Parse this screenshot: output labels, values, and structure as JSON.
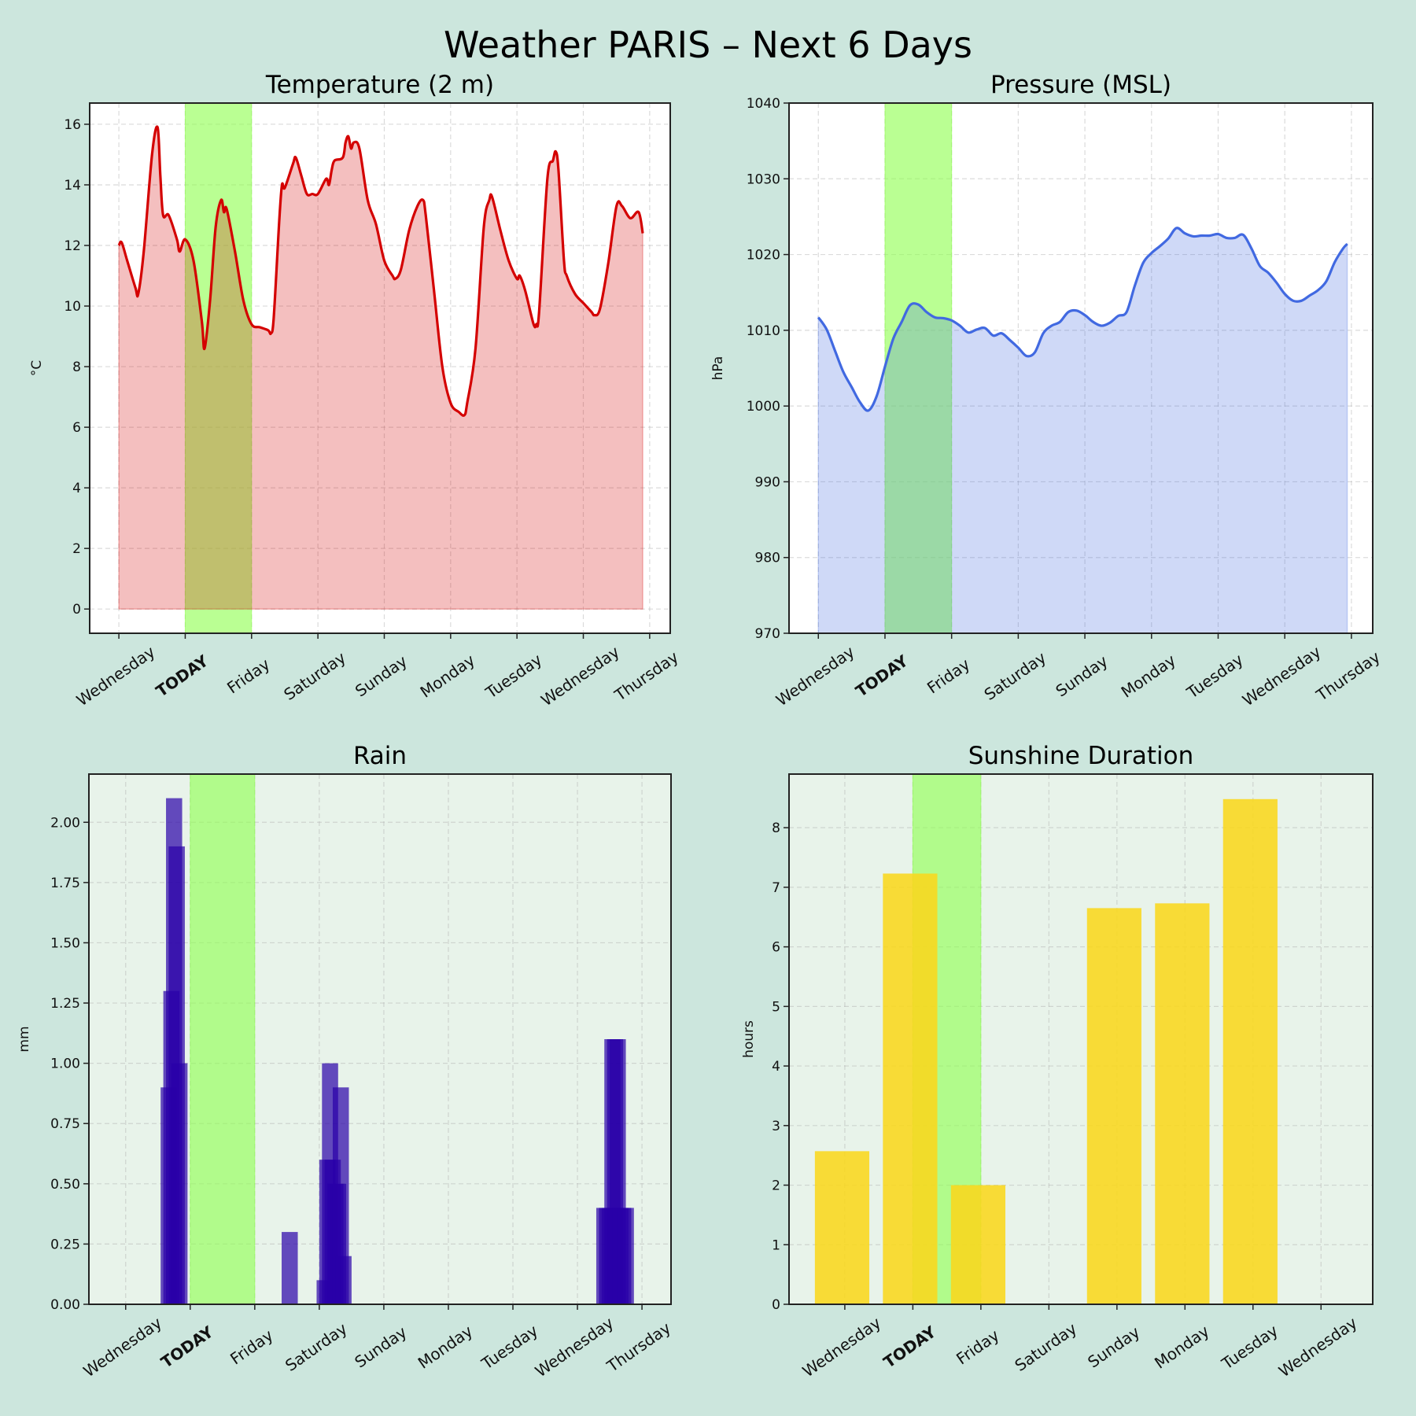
{
  "title": "Weather PARIS – Next 6 Days",
  "colors": {
    "background": "#cce6dd",
    "today_band": "#90ff50",
    "today_label": "#5cbf00",
    "temperature_line": "#d40000",
    "pressure_line": "#4169e1",
    "rain_bar": "#2a00a8",
    "sunshine_bar": "#f9d71c"
  },
  "chart_data": [
    {
      "id": "temperature",
      "type": "area",
      "title": "Temperature (2 m)",
      "xlabel": "",
      "ylabel": "°C",
      "grid": true,
      "panel_background": "#ffffff",
      "xtick_labels": [
        "Wednesday",
        "TODAY",
        "Friday",
        "Saturday",
        "Sunday",
        "Monday",
        "Tuesday",
        "Wednesday",
        "Thursday"
      ],
      "today_label": "TODAY",
      "ylim": [
        -0.8,
        16.7
      ],
      "yticks": [
        0,
        2,
        4,
        6,
        8,
        10,
        12,
        14,
        16
      ],
      "days": [
        {
          "day": "Wednesday",
          "points": [
            [
              "00:00",
              12.0
            ],
            [
              "01:00",
              12.1
            ],
            [
              "03:00",
              11.5
            ],
            [
              "06:00",
              10.6
            ],
            [
              "07:00",
              10.4
            ],
            [
              "09:00",
              11.8
            ],
            [
              "12:00",
              15.0
            ],
            [
              "14:00",
              15.9
            ],
            [
              "15:00",
              14.3
            ],
            [
              "16:00",
              13.0
            ],
            [
              "18:00",
              13.0
            ],
            [
              "21:00",
              12.2
            ],
            [
              "22:00",
              11.8
            ]
          ]
        },
        {
          "day": "TODAY",
          "points": [
            [
              "00:00",
              12.2
            ],
            [
              "03:00",
              11.5
            ],
            [
              "06:00",
              9.5
            ],
            [
              "07:00",
              8.6
            ],
            [
              "09:00",
              10.2
            ],
            [
              "11:00",
              12.6
            ],
            [
              "13:00",
              13.5
            ],
            [
              "14:00",
              13.1
            ],
            [
              "15:00",
              13.2
            ],
            [
              "18:00",
              11.8
            ],
            [
              "21:00",
              10.2
            ]
          ]
        },
        {
          "day": "Friday",
          "points": [
            [
              "00:00",
              9.4
            ],
            [
              "03:00",
              9.3
            ],
            [
              "06:00",
              9.2
            ],
            [
              "07:00",
              9.1
            ],
            [
              "08:00",
              9.6
            ],
            [
              "10:00",
              12.8
            ],
            [
              "11:00",
              14.0
            ],
            [
              "12:00",
              13.9
            ],
            [
              "15:00",
              14.7
            ],
            [
              "16:00",
              14.9
            ],
            [
              "18:00",
              14.3
            ],
            [
              "20:00",
              13.7
            ],
            [
              "22:00",
              13.7
            ]
          ]
        },
        {
          "day": "Saturday",
          "points": [
            [
              "00:00",
              13.7
            ],
            [
              "03:00",
              14.2
            ],
            [
              "04:00",
              14.0
            ],
            [
              "05:00",
              14.5
            ],
            [
              "06:00",
              14.8
            ],
            [
              "09:00",
              14.9
            ],
            [
              "10:00",
              15.4
            ],
            [
              "11:00",
              15.6
            ],
            [
              "12:00",
              15.2
            ],
            [
              "13:00",
              15.4
            ],
            [
              "15:00",
              15.2
            ],
            [
              "18:00",
              13.5
            ],
            [
              "21:00",
              12.7
            ]
          ]
        },
        {
          "day": "Sunday",
          "points": [
            [
              "00:00",
              11.5
            ],
            [
              "03:00",
              11.0
            ],
            [
              "04:00",
              10.9
            ],
            [
              "06:00",
              11.2
            ],
            [
              "09:00",
              12.5
            ],
            [
              "12:00",
              13.3
            ],
            [
              "14:00",
              13.5
            ],
            [
              "15:00",
              13.0
            ],
            [
              "18:00",
              10.5
            ],
            [
              "21:00",
              8.0
            ]
          ]
        },
        {
          "day": "Monday",
          "points": [
            [
              "00:00",
              6.8
            ],
            [
              "03:00",
              6.5
            ],
            [
              "05:00",
              6.4
            ],
            [
              "06:00",
              6.8
            ],
            [
              "09:00",
              8.6
            ],
            [
              "12:00",
              12.6
            ],
            [
              "14:00",
              13.5
            ],
            [
              "15:00",
              13.6
            ],
            [
              "18:00",
              12.5
            ],
            [
              "21:00",
              11.5
            ]
          ]
        },
        {
          "day": "Tuesday",
          "points": [
            [
              "00:00",
              10.9
            ],
            [
              "01:00",
              11.0
            ],
            [
              "03:00",
              10.5
            ],
            [
              "06:00",
              9.4
            ],
            [
              "07:00",
              9.4
            ],
            [
              "08:00",
              9.8
            ],
            [
              "11:00",
              14.2
            ],
            [
              "13:00",
              14.8
            ],
            [
              "14:00",
              15.1
            ],
            [
              "15:00",
              14.5
            ],
            [
              "17:00",
              11.5
            ],
            [
              "18:00",
              11.0
            ],
            [
              "21:00",
              10.4
            ]
          ]
        },
        {
          "day": "Wednesday",
          "points": [
            [
              "00:00",
              10.1
            ],
            [
              "03:00",
              9.8
            ],
            [
              "04:00",
              9.7
            ],
            [
              "06:00",
              9.9
            ],
            [
              "09:00",
              11.4
            ],
            [
              "12:00",
              13.3
            ],
            [
              "14:00",
              13.3
            ],
            [
              "17:00",
              12.9
            ],
            [
              "20:00",
              13.1
            ],
            [
              "21:30",
              12.4
            ]
          ]
        }
      ]
    },
    {
      "id": "pressure",
      "type": "area",
      "title": "Pressure (MSL)",
      "xlabel": "",
      "ylabel": "hPa",
      "grid": true,
      "panel_background": "#ffffff",
      "xtick_labels": [
        "Wednesday",
        "TODAY",
        "Friday",
        "Saturday",
        "Sunday",
        "Monday",
        "Tuesday",
        "Wednesday",
        "Thursday"
      ],
      "today_label": "TODAY",
      "ylim": [
        970,
        1040
      ],
      "yticks": [
        970,
        980,
        990,
        1000,
        1010,
        1020,
        1030,
        1040
      ],
      "days": [
        {
          "day": "Wednesday",
          "points": [
            [
              "00:00",
              1011.7
            ],
            [
              "03:00",
              1010.1
            ],
            [
              "06:00",
              1007.3
            ],
            [
              "09:00",
              1004.5
            ],
            [
              "12:00",
              1002.5
            ],
            [
              "15:00",
              1000.5
            ],
            [
              "18:00",
              999.4
            ],
            [
              "21:00",
              1001.3
            ]
          ]
        },
        {
          "day": "TODAY",
          "points": [
            [
              "00:00",
              1005.2
            ],
            [
              "03:00",
              1008.9
            ],
            [
              "06:00",
              1011.1
            ],
            [
              "09:00",
              1013.3
            ],
            [
              "12:00",
              1013.4
            ],
            [
              "15:00",
              1012.4
            ],
            [
              "18:00",
              1011.7
            ],
            [
              "21:00",
              1011.6
            ]
          ]
        },
        {
          "day": "Friday",
          "points": [
            [
              "00:00",
              1011.3
            ],
            [
              "03:00",
              1010.6
            ],
            [
              "06:00",
              1009.7
            ],
            [
              "09:00",
              1010.1
            ],
            [
              "12:00",
              1010.3
            ],
            [
              "15:00",
              1009.3
            ],
            [
              "18:00",
              1009.6
            ],
            [
              "21:00",
              1008.7
            ]
          ]
        },
        {
          "day": "Saturday",
          "points": [
            [
              "00:00",
              1007.7
            ],
            [
              "03:00",
              1006.6
            ],
            [
              "06:00",
              1007.1
            ],
            [
              "09:00",
              1009.6
            ],
            [
              "12:00",
              1010.6
            ],
            [
              "15:00",
              1011.1
            ],
            [
              "18:00",
              1012.4
            ],
            [
              "21:00",
              1012.6
            ]
          ]
        },
        {
          "day": "Sunday",
          "points": [
            [
              "00:00",
              1012.0
            ],
            [
              "03:00",
              1011.1
            ],
            [
              "06:00",
              1010.6
            ],
            [
              "09:00",
              1011.0
            ],
            [
              "12:00",
              1011.9
            ],
            [
              "15:00",
              1012.4
            ],
            [
              "18:00",
              1015.9
            ],
            [
              "21:00",
              1018.9
            ]
          ]
        },
        {
          "day": "Monday",
          "points": [
            [
              "00:00",
              1020.2
            ],
            [
              "03:00",
              1021.1
            ],
            [
              "06:00",
              1022.1
            ],
            [
              "09:00",
              1023.5
            ],
            [
              "12:00",
              1022.8
            ],
            [
              "15:00",
              1022.4
            ],
            [
              "18:00",
              1022.5
            ],
            [
              "21:00",
              1022.5
            ]
          ]
        },
        {
          "day": "Tuesday",
          "points": [
            [
              "00:00",
              1022.7
            ],
            [
              "03:00",
              1022.2
            ],
            [
              "06:00",
              1022.2
            ],
            [
              "09:00",
              1022.6
            ],
            [
              "12:00",
              1020.8
            ],
            [
              "15:00",
              1018.5
            ],
            [
              "18:00",
              1017.6
            ],
            [
              "21:00",
              1016.3
            ]
          ]
        },
        {
          "day": "Wednesday",
          "points": [
            [
              "00:00",
              1014.8
            ],
            [
              "03:00",
              1013.9
            ],
            [
              "06:00",
              1013.9
            ],
            [
              "09:00",
              1014.6
            ],
            [
              "12:00",
              1015.3
            ],
            [
              "15:00",
              1016.5
            ],
            [
              "18:00",
              1019.0
            ],
            [
              "21:00",
              1020.8
            ],
            [
              "22:30",
              1021.4
            ]
          ]
        }
      ]
    },
    {
      "id": "rain",
      "type": "bar",
      "title": "Rain",
      "xlabel": "",
      "ylabel": "mm",
      "grid": true,
      "panel_background": "#e8f3ea",
      "xtick_labels": [
        "Wednesday",
        "TODAY",
        "Friday",
        "Saturday",
        "Sunday",
        "Monday",
        "Tuesday",
        "Wednesday",
        "Thursday"
      ],
      "today_label": "TODAY",
      "ylim": [
        0,
        2.2
      ],
      "yticks": [
        0,
        0.25,
        0.5,
        0.75,
        1.0,
        1.25,
        1.5,
        1.75,
        2.0
      ],
      "days": [
        {
          "day": "Wednesday",
          "points": [
            [
              "16:00",
              0.9
            ],
            [
              "17:00",
              1.3
            ],
            [
              "18:00",
              2.1
            ],
            [
              "19:00",
              1.9
            ],
            [
              "20:00",
              1.0
            ]
          ]
        },
        {
          "day": "TODAY",
          "points": []
        },
        {
          "day": "Friday",
          "points": [
            [
              "13:00",
              0.3
            ]
          ]
        },
        {
          "day": "Saturday",
          "points": [
            [
              "02:00",
              0.1
            ],
            [
              "03:00",
              0.6
            ],
            [
              "04:00",
              1.0
            ],
            [
              "05:00",
              0.6
            ],
            [
              "06:00",
              0.5
            ],
            [
              "07:00",
              0.5
            ],
            [
              "08:00",
              0.9
            ],
            [
              "09:00",
              0.2
            ]
          ]
        },
        {
          "day": "Sunday",
          "points": []
        },
        {
          "day": "Monday",
          "points": []
        },
        {
          "day": "Tuesday",
          "points": []
        },
        {
          "day": "Wednesday",
          "points": [
            [
              "10:00",
              0.4
            ],
            [
              "11:00",
              0.4
            ],
            [
              "12:00",
              0.4
            ],
            [
              "13:00",
              1.1
            ],
            [
              "14:00",
              1.1
            ],
            [
              "15:00",
              1.1
            ],
            [
              "16:00",
              0.4
            ],
            [
              "17:00",
              0.4
            ],
            [
              "18:00",
              0.4
            ]
          ]
        }
      ]
    },
    {
      "id": "sunshine",
      "type": "bar",
      "title": "Sunshine Duration",
      "xlabel": "",
      "ylabel": "hours",
      "grid": true,
      "panel_background": "#e8f3ea",
      "xtick_labels": [
        "Wednesday",
        "TODAY",
        "Friday",
        "Saturday",
        "Sunday",
        "Monday",
        "Tuesday",
        "Wednesday"
      ],
      "today_label": "TODAY",
      "ylim": [
        0,
        8.9
      ],
      "yticks": [
        0,
        1,
        2,
        3,
        4,
        5,
        6,
        7,
        8
      ],
      "values": [
        2.57,
        7.23,
        2.0,
        0,
        6.65,
        6.73,
        8.48,
        0
      ]
    }
  ]
}
